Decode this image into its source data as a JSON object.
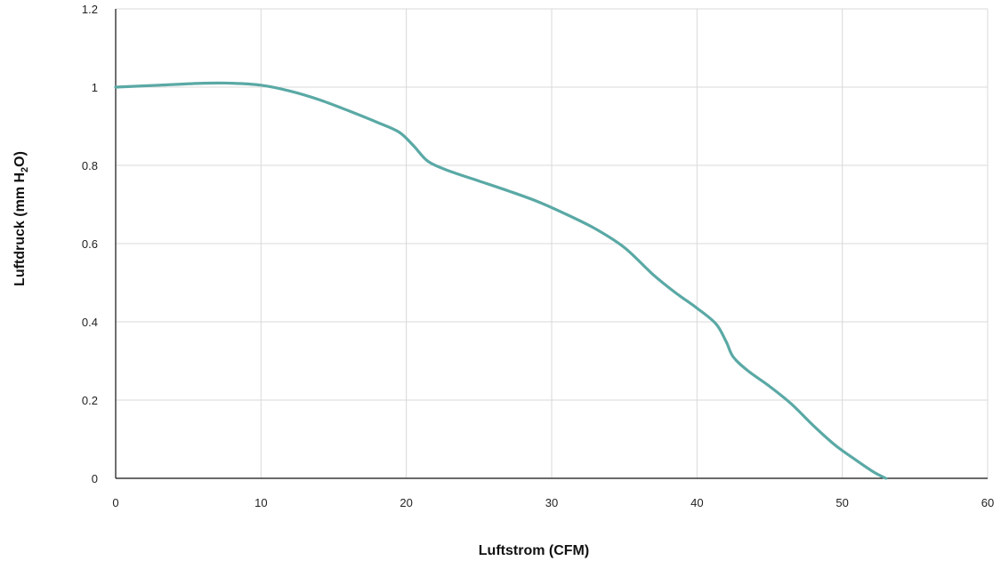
{
  "chart_data": {
    "type": "line",
    "title": "",
    "xlabel": "Luftstrom (CFM)",
    "ylabel": {
      "prefix": "Luftdruck (mm H",
      "subscript": "2",
      "suffix": "O)"
    },
    "xlim": [
      0,
      60
    ],
    "ylim": [
      0,
      1.2
    ],
    "xticks": [
      0,
      10,
      20,
      30,
      40,
      50,
      60
    ],
    "yticks": [
      0,
      0.2,
      0.4,
      0.6,
      0.8,
      1,
      1.2
    ],
    "xtick_labels": [
      "0",
      "10",
      "20",
      "30",
      "40",
      "50",
      "60"
    ],
    "ytick_labels": [
      "0",
      "0.2",
      "0.4",
      "0.6",
      "0.8",
      "1",
      "1.2"
    ],
    "grid": true,
    "legend": "none",
    "series": [
      {
        "color": "#5aa9a5",
        "x": [
          0,
          3,
          6,
          8,
          10,
          12,
          14,
          16,
          18,
          19.5,
          20.5,
          21.5,
          23,
          25,
          27,
          29,
          31,
          33,
          35,
          37,
          38.5,
          40,
          41.3,
          42,
          42.5,
          43.5,
          45,
          46.5,
          48,
          49.5,
          51,
          52.2,
          53
        ],
        "y": [
          1.0,
          1.005,
          1.01,
          1.01,
          1.005,
          0.99,
          0.968,
          0.94,
          0.91,
          0.885,
          0.85,
          0.81,
          0.785,
          0.76,
          0.735,
          0.708,
          0.675,
          0.638,
          0.59,
          0.52,
          0.475,
          0.435,
          0.395,
          0.35,
          0.31,
          0.275,
          0.235,
          0.19,
          0.135,
          0.085,
          0.045,
          0.015,
          0.0
        ]
      }
    ]
  }
}
